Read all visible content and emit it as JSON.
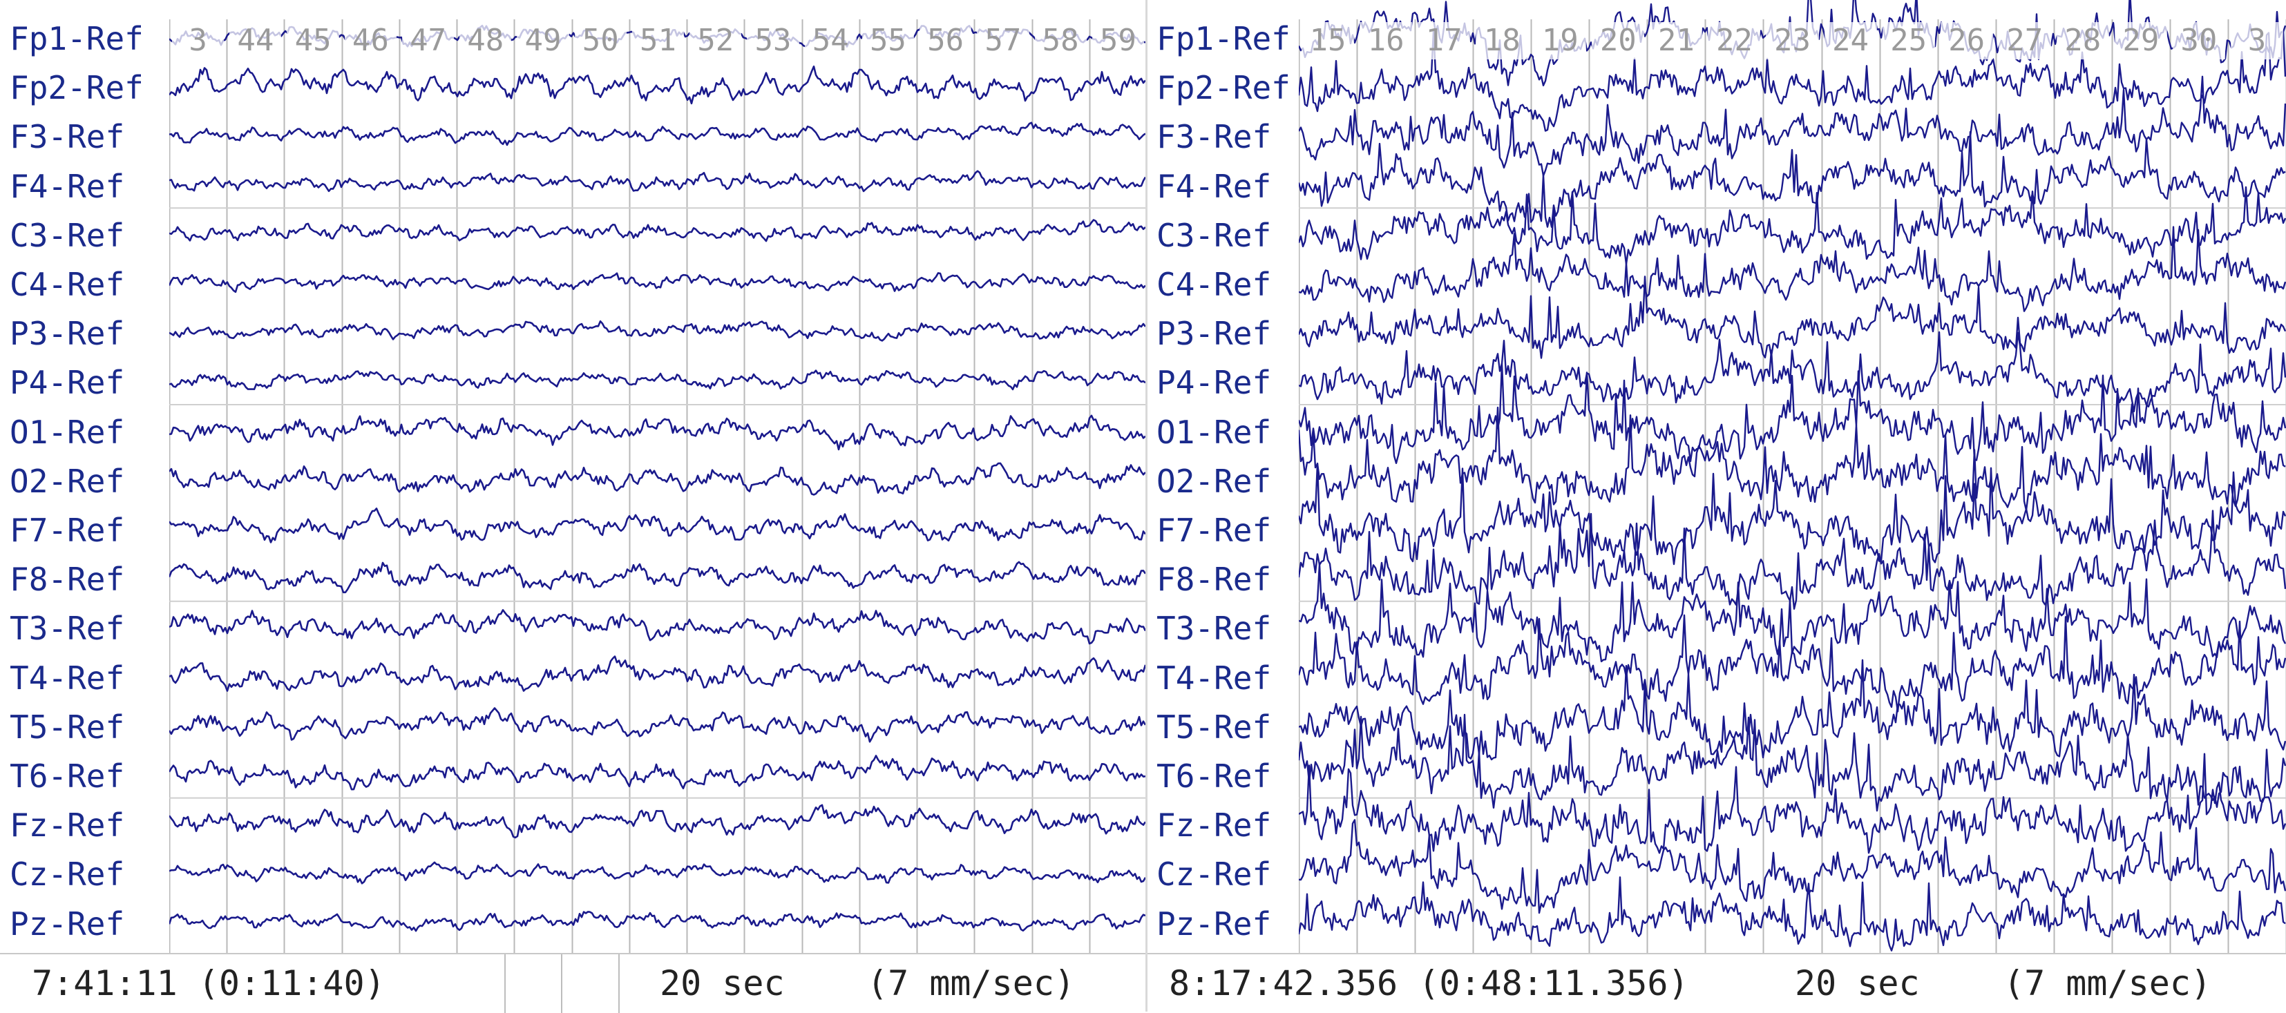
{
  "colors": {
    "trace": "#1a1a8c",
    "grid": "#b8b8b8",
    "baseline": "#cfcfcf",
    "label": "#1a2a8c",
    "second_label": "#9a9a9a",
    "footer_text": "#222222"
  },
  "panels": [
    {
      "id": "left",
      "channels": [
        "Fp1-Ref",
        "Fp2-Ref",
        "F3-Ref",
        "F4-Ref",
        "C3-Ref",
        "C4-Ref",
        "P3-Ref",
        "P4-Ref",
        "O1-Ref",
        "O2-Ref",
        "F7-Ref",
        "F8-Ref",
        "T3-Ref",
        "T4-Ref",
        "T5-Ref",
        "T6-Ref",
        "Fz-Ref",
        "Cz-Ref",
        "Pz-Ref"
      ],
      "seconds": [
        "3",
        "44",
        "45",
        "46",
        "47",
        "48",
        "49",
        "50",
        "51",
        "52",
        "53",
        "54",
        "55",
        "56",
        "57",
        "58",
        "59"
      ],
      "footer": {
        "time": "7:41:11 (0:11:40)",
        "duration": "20 sec",
        "speed": "(7 mm/sec)"
      },
      "trace_style": "regular"
    },
    {
      "id": "right",
      "channels": [
        "Fp1-Ref",
        "Fp2-Ref",
        "F3-Ref",
        "F4-Ref",
        "C3-Ref",
        "C4-Ref",
        "P3-Ref",
        "P4-Ref",
        "O1-Ref",
        "O2-Ref",
        "F7-Ref",
        "F8-Ref",
        "T3-Ref",
        "T4-Ref",
        "T5-Ref",
        "T6-Ref",
        "Fz-Ref",
        "Cz-Ref",
        "Pz-Ref"
      ],
      "seconds": [
        "15",
        "16",
        "17",
        "18",
        "19",
        "20",
        "21",
        "22",
        "23",
        "24",
        "25",
        "26",
        "27",
        "28",
        "29",
        "30",
        "3"
      ],
      "footer": {
        "time": "8:17:42.356 (0:48:11.356)",
        "duration": "20 sec",
        "speed": "(7 mm/sec)"
      },
      "trace_style": "spiky"
    }
  ]
}
